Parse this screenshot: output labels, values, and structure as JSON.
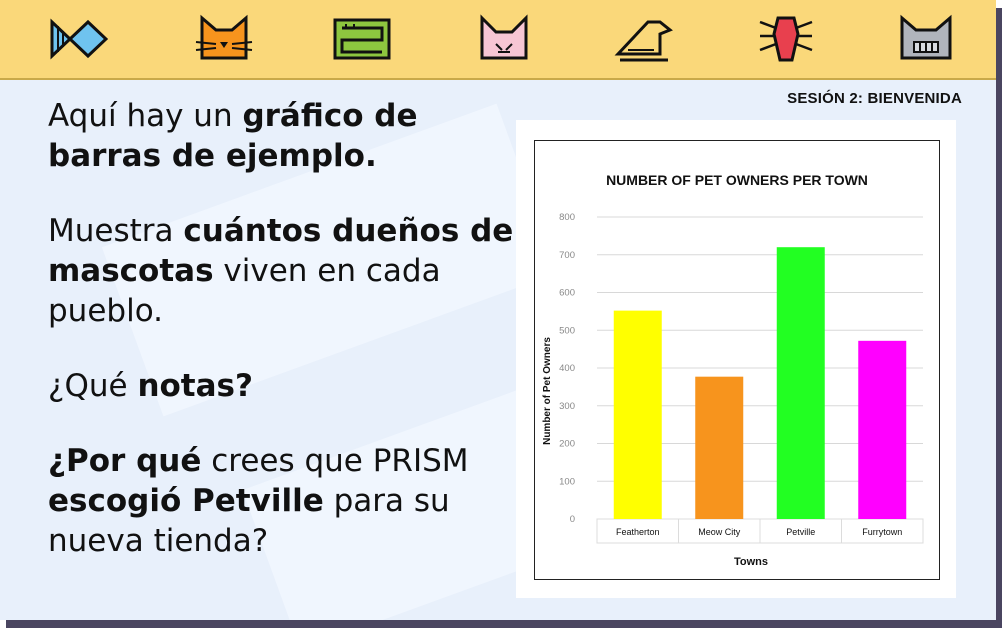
{
  "header": {
    "icons": [
      "fish-icon",
      "cat-face-icon",
      "maze-icon",
      "fox-face-icon",
      "bird-icon",
      "spider-icon",
      "robot-cat-icon"
    ],
    "colors": {
      "bar": "#fad87a",
      "stroke": "#222222"
    }
  },
  "session_label": "SESIÓN 2: BIENVENIDA",
  "content": {
    "p1": {
      "a": "Aquí hay un ",
      "b": "gráfico de barras de ejemplo."
    },
    "p2": {
      "a": "Muestra ",
      "b": "cuántos dueños de mascotas",
      "c": " viven en cada pueblo."
    },
    "p3": {
      "a": "¿Qué ",
      "b": "notas?"
    },
    "p4": {
      "b1": "¿Por qué",
      "a": " crees que PRISM ",
      "b2": "escogió Petville",
      "c": " para su nueva tienda?"
    }
  },
  "chart_data": {
    "type": "bar",
    "title": "NUMBER OF PET OWNERS PER TOWN",
    "xlabel": "Towns",
    "ylabel": "Number of Pet Owners",
    "categories": [
      "Featherton",
      "Meow City",
      "Petville",
      "Furrytown"
    ],
    "values": [
      552,
      377,
      720,
      472
    ],
    "colors": [
      "#ffff00",
      "#f7941d",
      "#22ff22",
      "#ff00ff"
    ],
    "ylim": [
      0,
      800
    ],
    "yticks": [
      0,
      100,
      200,
      300,
      400,
      500,
      600,
      700,
      800
    ],
    "grid": true
  }
}
